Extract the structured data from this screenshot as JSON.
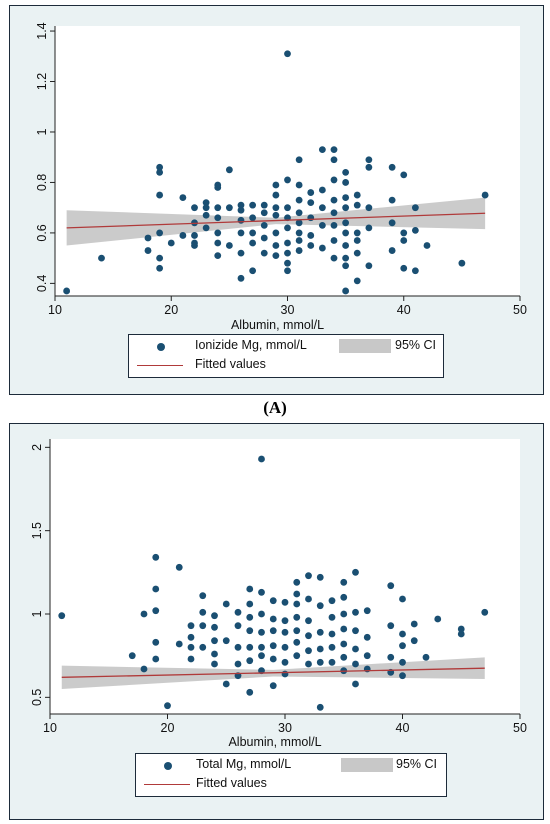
{
  "colors": {
    "panel_bg": "#eaf2f3",
    "plot_bg": "#ffffff",
    "points": "#1a4f72",
    "fit_line": "#b03a3a",
    "ci_band": "#c8c8c8",
    "axis": "#222222"
  },
  "caption_a": "(A)",
  "chart_data": [
    {
      "type": "scatter",
      "xlabel": "Albumin, mmol/L",
      "ylabel": "",
      "xlim": [
        10,
        50
      ],
      "ylim": [
        0.35,
        1.42
      ],
      "xticks": [
        "10",
        "20",
        "30",
        "40",
        "50"
      ],
      "yticks": [
        "0.4",
        "0.6",
        "0.8",
        "1",
        "1.2",
        "1.4"
      ],
      "ytick_values": [
        0.4,
        0.6,
        0.8,
        1.0,
        1.2,
        1.4
      ],
      "grid": false,
      "legend": {
        "placement": "bottom",
        "entries": {
          "points": "Ionizide Mg, mmol/L",
          "ci": "95% CI",
          "fit": "Fitted values"
        }
      },
      "fit": {
        "x": [
          11,
          47
        ],
        "y": [
          0.62,
          0.678
        ]
      },
      "ci": {
        "x": [
          11,
          29,
          47
        ],
        "lower": [
          0.55,
          0.635,
          0.615
        ],
        "upper": [
          0.69,
          0.66,
          0.74
        ]
      },
      "points": [
        [
          11,
          0.37
        ],
        [
          14,
          0.5
        ],
        [
          18,
          0.53
        ],
        [
          18,
          0.58
        ],
        [
          19,
          0.86
        ],
        [
          19,
          0.84
        ],
        [
          19,
          0.75
        ],
        [
          19,
          0.6
        ],
        [
          19,
          0.5
        ],
        [
          19,
          0.46
        ],
        [
          20,
          0.56
        ],
        [
          21,
          0.74
        ],
        [
          21,
          0.59
        ],
        [
          22,
          0.7
        ],
        [
          22,
          0.64
        ],
        [
          22,
          0.59
        ],
        [
          22,
          0.56
        ],
        [
          22,
          0.55
        ],
        [
          23,
          0.72
        ],
        [
          23,
          0.7
        ],
        [
          23,
          0.67
        ],
        [
          23,
          0.62
        ],
        [
          24,
          0.79
        ],
        [
          24,
          0.78
        ],
        [
          24,
          0.7
        ],
        [
          24,
          0.66
        ],
        [
          24,
          0.6
        ],
        [
          24,
          0.56
        ],
        [
          24,
          0.51
        ],
        [
          25,
          0.85
        ],
        [
          25,
          0.7
        ],
        [
          25,
          0.55
        ],
        [
          26,
          0.71
        ],
        [
          26,
          0.69
        ],
        [
          26,
          0.65
        ],
        [
          26,
          0.6
        ],
        [
          26,
          0.52
        ],
        [
          26,
          0.42
        ],
        [
          27,
          0.71
        ],
        [
          27,
          0.66
        ],
        [
          27,
          0.6
        ],
        [
          27,
          0.56
        ],
        [
          27,
          0.45
        ],
        [
          28,
          0.71
        ],
        [
          28,
          0.68
        ],
        [
          28,
          0.63
        ],
        [
          28,
          0.58
        ],
        [
          28,
          0.52
        ],
        [
          29,
          0.79
        ],
        [
          29,
          0.75
        ],
        [
          29,
          0.7
        ],
        [
          29,
          0.67
        ],
        [
          29,
          0.6
        ],
        [
          29,
          0.55
        ],
        [
          29,
          0.51
        ],
        [
          30,
          1.31
        ],
        [
          30,
          0.81
        ],
        [
          30,
          0.7
        ],
        [
          30,
          0.66
        ],
        [
          30,
          0.62
        ],
        [
          30,
          0.56
        ],
        [
          30,
          0.52
        ],
        [
          30,
          0.48
        ],
        [
          30,
          0.45
        ],
        [
          31,
          0.89
        ],
        [
          31,
          0.79
        ],
        [
          31,
          0.73
        ],
        [
          31,
          0.68
        ],
        [
          31,
          0.64
        ],
        [
          31,
          0.6
        ],
        [
          31,
          0.57
        ],
        [
          31,
          0.53
        ],
        [
          32,
          0.76
        ],
        [
          32,
          0.72
        ],
        [
          32,
          0.66
        ],
        [
          32,
          0.59
        ],
        [
          32,
          0.55
        ],
        [
          33,
          0.93
        ],
        [
          33,
          0.77
        ],
        [
          33,
          0.7
        ],
        [
          33,
          0.63
        ],
        [
          33,
          0.54
        ],
        [
          34,
          0.93
        ],
        [
          34,
          0.89
        ],
        [
          34,
          0.81
        ],
        [
          34,
          0.73
        ],
        [
          34,
          0.68
        ],
        [
          34,
          0.63
        ],
        [
          34,
          0.57
        ],
        [
          34,
          0.5
        ],
        [
          35,
          0.84
        ],
        [
          35,
          0.8
        ],
        [
          35,
          0.74
        ],
        [
          35,
          0.7
        ],
        [
          35,
          0.64
        ],
        [
          35,
          0.6
        ],
        [
          35,
          0.55
        ],
        [
          35,
          0.5
        ],
        [
          35,
          0.47
        ],
        [
          35,
          0.37
        ],
        [
          36,
          0.75
        ],
        [
          36,
          0.71
        ],
        [
          36,
          0.6
        ],
        [
          36,
          0.57
        ],
        [
          36,
          0.52
        ],
        [
          36,
          0.41
        ],
        [
          37,
          0.89
        ],
        [
          37,
          0.86
        ],
        [
          37,
          0.7
        ],
        [
          37,
          0.62
        ],
        [
          37,
          0.47
        ],
        [
          39,
          0.86
        ],
        [
          39,
          0.73
        ],
        [
          39,
          0.64
        ],
        [
          39,
          0.53
        ],
        [
          40,
          0.83
        ],
        [
          40,
          0.6
        ],
        [
          40,
          0.57
        ],
        [
          40,
          0.46
        ],
        [
          41,
          0.7
        ],
        [
          41,
          0.61
        ],
        [
          41,
          0.45
        ],
        [
          42,
          0.55
        ],
        [
          45,
          0.48
        ],
        [
          47,
          0.75
        ]
      ]
    },
    {
      "type": "scatter",
      "xlabel": "Albumin, mmol/L",
      "ylabel": "",
      "xlim": [
        10,
        50
      ],
      "ylim": [
        0.4,
        2.05
      ],
      "xticks": [
        "10",
        "20",
        "30",
        "40",
        "50"
      ],
      "yticks": [
        "0.5",
        "1",
        "1.5",
        "2"
      ],
      "ytick_values": [
        0.5,
        1.0,
        1.5,
        2.0
      ],
      "grid": false,
      "legend": {
        "placement": "bottom",
        "entries": {
          "points": "Total Mg, mmol/L",
          "ci": "95% CI",
          "fit": "Fitted values"
        }
      },
      "fit": {
        "x": [
          11,
          47
        ],
        "y": [
          0.62,
          0.675
        ]
      },
      "ci": {
        "x": [
          11,
          29,
          47
        ],
        "lower": [
          0.55,
          0.625,
          0.61
        ],
        "upper": [
          0.69,
          0.665,
          0.74
        ]
      },
      "points": [
        [
          11,
          0.99
        ],
        [
          17,
          0.75
        ],
        [
          18,
          1.0
        ],
        [
          18,
          0.67
        ],
        [
          19,
          1.34
        ],
        [
          19,
          1.15
        ],
        [
          19,
          1.02
        ],
        [
          19,
          0.83
        ],
        [
          19,
          0.73
        ],
        [
          20,
          0.45
        ],
        [
          21,
          1.28
        ],
        [
          21,
          0.82
        ],
        [
          22,
          0.93
        ],
        [
          22,
          0.86
        ],
        [
          22,
          0.8
        ],
        [
          22,
          0.73
        ],
        [
          23,
          1.11
        ],
        [
          23,
          1.01
        ],
        [
          23,
          0.93
        ],
        [
          23,
          0.8
        ],
        [
          24,
          0.99
        ],
        [
          24,
          0.92
        ],
        [
          24,
          0.84
        ],
        [
          24,
          0.76
        ],
        [
          24,
          0.7
        ],
        [
          25,
          1.06
        ],
        [
          25,
          0.84
        ],
        [
          25,
          0.58
        ],
        [
          26,
          1.01
        ],
        [
          26,
          0.93
        ],
        [
          26,
          0.8
        ],
        [
          26,
          0.7
        ],
        [
          26,
          0.63
        ],
        [
          27,
          1.15
        ],
        [
          27,
          1.06
        ],
        [
          27,
          0.98
        ],
        [
          27,
          0.9
        ],
        [
          27,
          0.8
        ],
        [
          27,
          0.72
        ],
        [
          27,
          0.53
        ],
        [
          28,
          1.93
        ],
        [
          28,
          1.13
        ],
        [
          28,
          1.0
        ],
        [
          28,
          0.89
        ],
        [
          28,
          0.8
        ],
        [
          28,
          0.75
        ],
        [
          28,
          0.66
        ],
        [
          29,
          1.08
        ],
        [
          29,
          0.97
        ],
        [
          29,
          0.9
        ],
        [
          29,
          0.81
        ],
        [
          29,
          0.73
        ],
        [
          29,
          0.57
        ],
        [
          30,
          1.07
        ],
        [
          30,
          0.96
        ],
        [
          30,
          0.89
        ],
        [
          30,
          0.8
        ],
        [
          30,
          0.71
        ],
        [
          30,
          0.64
        ],
        [
          31,
          1.19
        ],
        [
          31,
          1.12
        ],
        [
          31,
          1.06
        ],
        [
          31,
          0.98
        ],
        [
          31,
          0.9
        ],
        [
          31,
          0.83
        ],
        [
          31,
          0.75
        ],
        [
          32,
          1.23
        ],
        [
          32,
          1.09
        ],
        [
          32,
          0.96
        ],
        [
          32,
          0.87
        ],
        [
          32,
          0.78
        ],
        [
          32,
          0.7
        ],
        [
          33,
          1.22
        ],
        [
          33,
          1.05
        ],
        [
          33,
          0.89
        ],
        [
          33,
          0.79
        ],
        [
          33,
          0.71
        ],
        [
          33,
          0.44
        ],
        [
          34,
          1.08
        ],
        [
          34,
          0.98
        ],
        [
          34,
          0.88
        ],
        [
          34,
          0.8
        ],
        [
          34,
          0.71
        ],
        [
          35,
          1.19
        ],
        [
          35,
          1.1
        ],
        [
          35,
          1.0
        ],
        [
          35,
          0.91
        ],
        [
          35,
          0.82
        ],
        [
          35,
          0.74
        ],
        [
          35,
          0.66
        ],
        [
          36,
          1.25
        ],
        [
          36,
          1.01
        ],
        [
          36,
          0.9
        ],
        [
          36,
          0.79
        ],
        [
          36,
          0.7
        ],
        [
          36,
          0.58
        ],
        [
          37,
          1.02
        ],
        [
          37,
          0.86
        ],
        [
          37,
          0.75
        ],
        [
          37,
          0.67
        ],
        [
          39,
          1.17
        ],
        [
          39,
          0.93
        ],
        [
          39,
          0.74
        ],
        [
          39,
          0.65
        ],
        [
          40,
          1.09
        ],
        [
          40,
          0.88
        ],
        [
          40,
          0.81
        ],
        [
          40,
          0.71
        ],
        [
          40,
          0.63
        ],
        [
          41,
          0.94
        ],
        [
          41,
          0.84
        ],
        [
          42,
          0.74
        ],
        [
          43,
          0.97
        ],
        [
          45,
          0.91
        ],
        [
          45,
          0.88
        ],
        [
          47,
          1.01
        ]
      ]
    }
  ]
}
